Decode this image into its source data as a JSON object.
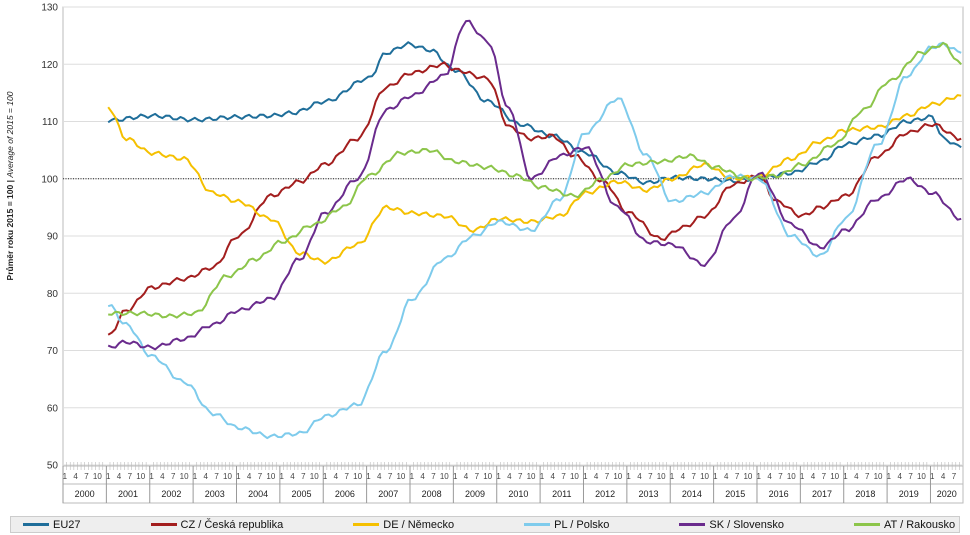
{
  "chart_data": {
    "type": "line",
    "ylabel_cz": "Průměr roku 2015 = 100",
    "ylabel_sep": " | ",
    "ylabel_en": "Average of 2015 = 100",
    "ylim": [
      50,
      130
    ],
    "yticks": [
      50,
      60,
      70,
      80,
      90,
      100,
      110,
      120,
      130
    ],
    "reference_line": 100,
    "x_start": "2000-01",
    "x_end": "2020-09",
    "years": [
      "2000",
      "2001",
      "2002",
      "2003",
      "2004",
      "2005",
      "2006",
      "2007",
      "2008",
      "2009",
      "2010",
      "2011",
      "2012",
      "2013",
      "2014",
      "2015",
      "2016",
      "2017",
      "2018",
      "2019",
      "2020"
    ],
    "quarter_ticks": [
      "1",
      "4",
      "7",
      "10"
    ],
    "grid": "horizontal",
    "legend_position": "bottom",
    "series": [
      {
        "name": "EU27",
        "color": "#1f6e9a",
        "points": [
          [
            "2001-01",
            110.2
          ],
          [
            "2002-01",
            111.0
          ],
          [
            "2003-01",
            110.3
          ],
          [
            "2004-01",
            110.8
          ],
          [
            "2004-10",
            111.0
          ],
          [
            "2005-04",
            111.5
          ],
          [
            "2006-01",
            113.5
          ],
          [
            "2007-01",
            117.5
          ],
          [
            "2007-06",
            122.0
          ],
          [
            "2007-12",
            123.5
          ],
          [
            "2008-06",
            122.5
          ],
          [
            "2009-01",
            119.0
          ],
          [
            "2009-10",
            113.5
          ],
          [
            "2010-07",
            109.5
          ],
          [
            "2011-04",
            107.5
          ],
          [
            "2012-01",
            104.5
          ],
          [
            "2012-10",
            101.0
          ],
          [
            "2013-06",
            99.3
          ],
          [
            "2014-01",
            100.2
          ],
          [
            "2014-10",
            100.0
          ],
          [
            "2015-06",
            99.6
          ],
          [
            "2016-01",
            100.1
          ],
          [
            "2016-10",
            101.0
          ],
          [
            "2017-06",
            103.0
          ],
          [
            "2018-01",
            106.0
          ],
          [
            "2018-10",
            107.5
          ],
          [
            "2019-06",
            110.0
          ],
          [
            "2020-01",
            110.8
          ],
          [
            "2020-04",
            107.0
          ],
          [
            "2020-09",
            105.5
          ]
        ]
      },
      {
        "name": "CZ / Česká republika",
        "color": "#a31e1e",
        "points": [
          [
            "2001-01",
            72.5
          ],
          [
            "2001-06",
            77.0
          ],
          [
            "2002-01",
            81.0
          ],
          [
            "2002-10",
            82.5
          ],
          [
            "2003-06",
            84.5
          ],
          [
            "2004-01",
            90.0
          ],
          [
            "2004-10",
            97.0
          ],
          [
            "2005-06",
            99.5
          ],
          [
            "2006-01",
            102.5
          ],
          [
            "2006-10",
            107.0
          ],
          [
            "2007-06",
            116.0
          ],
          [
            "2008-01",
            118.5
          ],
          [
            "2008-10",
            120.0
          ],
          [
            "2009-01",
            119.0
          ],
          [
            "2009-10",
            117.5
          ],
          [
            "2010-04",
            109.0
          ],
          [
            "2010-10",
            107.0
          ],
          [
            "2011-04",
            107.5
          ],
          [
            "2011-10",
            104.0
          ],
          [
            "2012-06",
            99.5
          ],
          [
            "2013-01",
            94.0
          ],
          [
            "2013-10",
            89.5
          ],
          [
            "2014-04",
            91.5
          ],
          [
            "2014-10",
            93.5
          ],
          [
            "2015-06",
            99.0
          ],
          [
            "2016-01",
            100.5
          ],
          [
            "2016-06",
            96.0
          ],
          [
            "2017-01",
            93.5
          ],
          [
            "2017-06",
            95.0
          ],
          [
            "2018-01",
            97.0
          ],
          [
            "2018-10",
            104.0
          ],
          [
            "2019-06",
            108.0
          ],
          [
            "2020-01",
            109.5
          ],
          [
            "2020-09",
            107.0
          ]
        ]
      },
      {
        "name": "DE / Německo",
        "color": "#f5c000",
        "points": [
          [
            "2001-01",
            112.5
          ],
          [
            "2001-06",
            107.0
          ],
          [
            "2002-01",
            104.5
          ],
          [
            "2002-10",
            103.5
          ],
          [
            "2003-06",
            97.5
          ],
          [
            "2004-01",
            96.0
          ],
          [
            "2004-10",
            93.0
          ],
          [
            "2005-06",
            87.0
          ],
          [
            "2006-01",
            85.5
          ],
          [
            "2006-10",
            88.5
          ],
          [
            "2007-06",
            95.0
          ],
          [
            "2008-01",
            94.0
          ],
          [
            "2008-10",
            93.5
          ],
          [
            "2009-06",
            91.0
          ],
          [
            "2010-01",
            93.0
          ],
          [
            "2010-10",
            92.5
          ],
          [
            "2011-06",
            93.5
          ],
          [
            "2012-01",
            97.5
          ],
          [
            "2012-10",
            99.5
          ],
          [
            "2013-06",
            98.0
          ],
          [
            "2014-01",
            100.0
          ],
          [
            "2014-10",
            102.5
          ],
          [
            "2015-06",
            100.0
          ],
          [
            "2016-01",
            100.5
          ],
          [
            "2016-10",
            103.5
          ],
          [
            "2017-06",
            106.5
          ],
          [
            "2018-01",
            108.5
          ],
          [
            "2018-10",
            109.0
          ],
          [
            "2019-06",
            111.0
          ],
          [
            "2020-01",
            113.0
          ],
          [
            "2020-09",
            114.5
          ]
        ]
      },
      {
        "name": "PL / Polsko",
        "color": "#7ecbec",
        "points": [
          [
            "2001-01",
            78.0
          ],
          [
            "2001-06",
            74.5
          ],
          [
            "2002-01",
            69.0
          ],
          [
            "2002-10",
            64.5
          ],
          [
            "2003-06",
            59.0
          ],
          [
            "2004-01",
            56.5
          ],
          [
            "2004-10",
            55.0
          ],
          [
            "2005-06",
            55.5
          ],
          [
            "2006-01",
            58.5
          ],
          [
            "2006-10",
            60.5
          ],
          [
            "2007-06",
            70.0
          ],
          [
            "2008-01",
            79.0
          ],
          [
            "2008-10",
            86.0
          ],
          [
            "2009-06",
            90.0
          ],
          [
            "2010-01",
            92.5
          ],
          [
            "2010-10",
            91.0
          ],
          [
            "2011-06",
            96.5
          ],
          [
            "2012-01",
            108.0
          ],
          [
            "2012-10",
            114.0
          ],
          [
            "2013-06",
            104.0
          ],
          [
            "2014-01",
            96.0
          ],
          [
            "2014-10",
            97.5
          ],
          [
            "2015-06",
            100.5
          ],
          [
            "2016-01",
            100.0
          ],
          [
            "2016-10",
            90.0
          ],
          [
            "2017-06",
            86.5
          ],
          [
            "2018-01",
            93.0
          ],
          [
            "2018-10",
            106.0
          ],
          [
            "2019-06",
            118.0
          ],
          [
            "2020-01",
            123.0
          ],
          [
            "2020-04",
            123.5
          ],
          [
            "2020-09",
            122.0
          ]
        ]
      },
      {
        "name": "SK / Slovensko",
        "color": "#6a2b8d",
        "points": [
          [
            "2001-01",
            70.5
          ],
          [
            "2001-06",
            71.5
          ],
          [
            "2002-01",
            70.5
          ],
          [
            "2002-10",
            72.0
          ],
          [
            "2003-06",
            74.5
          ],
          [
            "2004-01",
            77.0
          ],
          [
            "2004-10",
            79.0
          ],
          [
            "2005-06",
            86.0
          ],
          [
            "2006-01",
            94.0
          ],
          [
            "2006-10",
            100.0
          ],
          [
            "2007-06",
            112.0
          ],
          [
            "2008-01",
            114.5
          ],
          [
            "2008-10",
            118.0
          ],
          [
            "2009-04",
            127.5
          ],
          [
            "2009-10",
            124.0
          ],
          [
            "2010-04",
            112.0
          ],
          [
            "2010-10",
            100.0
          ],
          [
            "2011-06",
            104.0
          ],
          [
            "2012-01",
            105.5
          ],
          [
            "2012-10",
            95.0
          ],
          [
            "2013-06",
            89.0
          ],
          [
            "2014-01",
            88.5
          ],
          [
            "2014-10",
            85.0
          ],
          [
            "2015-06",
            93.0
          ],
          [
            "2016-01",
            101.0
          ],
          [
            "2016-10",
            92.0
          ],
          [
            "2017-06",
            88.0
          ],
          [
            "2018-01",
            91.0
          ],
          [
            "2018-10",
            96.5
          ],
          [
            "2019-06",
            100.0
          ],
          [
            "2020-01",
            97.5
          ],
          [
            "2020-09",
            93.0
          ]
        ]
      },
      {
        "name": "AT / Rakousko",
        "color": "#8cc54a",
        "points": [
          [
            "2001-01",
            76.5
          ],
          [
            "2001-10",
            76.5
          ],
          [
            "2002-06",
            76.0
          ],
          [
            "2003-01",
            76.5
          ],
          [
            "2003-10",
            83.0
          ],
          [
            "2004-06",
            86.0
          ],
          [
            "2005-01",
            89.0
          ],
          [
            "2005-10",
            92.0
          ],
          [
            "2006-06",
            95.0
          ],
          [
            "2007-01",
            100.5
          ],
          [
            "2007-10",
            104.5
          ],
          [
            "2008-06",
            105.0
          ],
          [
            "2009-01",
            103.0
          ],
          [
            "2009-10",
            102.0
          ],
          [
            "2010-06",
            100.5
          ],
          [
            "2011-01",
            98.5
          ],
          [
            "2011-10",
            97.0
          ],
          [
            "2012-06",
            100.0
          ],
          [
            "2013-01",
            102.5
          ],
          [
            "2013-10",
            103.0
          ],
          [
            "2014-06",
            104.0
          ],
          [
            "2015-01",
            102.0
          ],
          [
            "2015-10",
            100.0
          ],
          [
            "2016-06",
            100.5
          ],
          [
            "2017-01",
            102.5
          ],
          [
            "2017-10",
            106.0
          ],
          [
            "2018-06",
            112.0
          ],
          [
            "2019-01",
            117.0
          ],
          [
            "2019-10",
            122.0
          ],
          [
            "2020-04",
            123.5
          ],
          [
            "2020-09",
            120.0
          ]
        ]
      }
    ]
  }
}
